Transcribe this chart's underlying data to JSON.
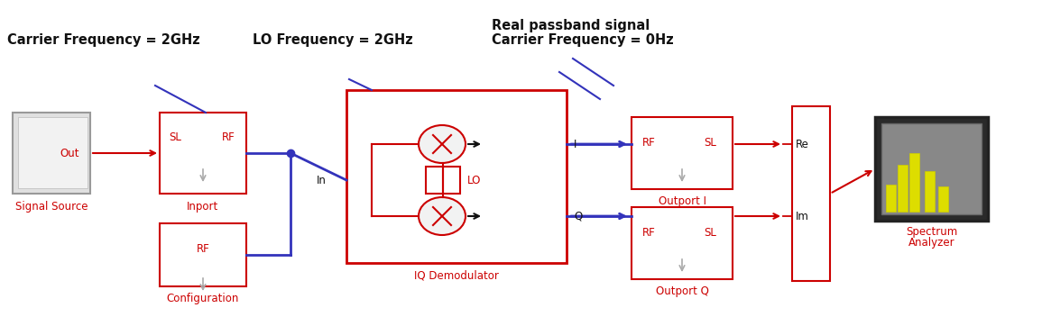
{
  "background_color": "#ffffff",
  "red": "#CC0000",
  "blue": "#3333BB",
  "black": "#111111",
  "gray": "#888888",
  "light_gray": "#CCCCCC",
  "annotation1": "Carrier Frequency = 2GHz",
  "annotation2": "LO Frequency = 2GHz",
  "annotation3_line1": "Real passband signal",
  "annotation3_line2": "Carrier Frequency = 0Hz",
  "label_signal_source": "Signal Source",
  "label_inport": "Inport",
  "label_configuration": "Configuration",
  "label_iq_demod": "IQ Demodulator",
  "label_outport_i": "Outport I",
  "label_outport_q": "Outport Q",
  "label_spectrum_line1": "Spectrum",
  "label_spectrum_line2": "Analyzer",
  "text_out": "Out",
  "text_in": "In",
  "text_sl": "SL",
  "text_rf": "RF",
  "text_lo": "LO",
  "text_i": "I",
  "text_q": "Q",
  "text_re": "Re",
  "text_im": "Im",
  "fontsize_annotation": 10.5,
  "fontsize_label": 8.5,
  "fontsize_block": 8.5
}
